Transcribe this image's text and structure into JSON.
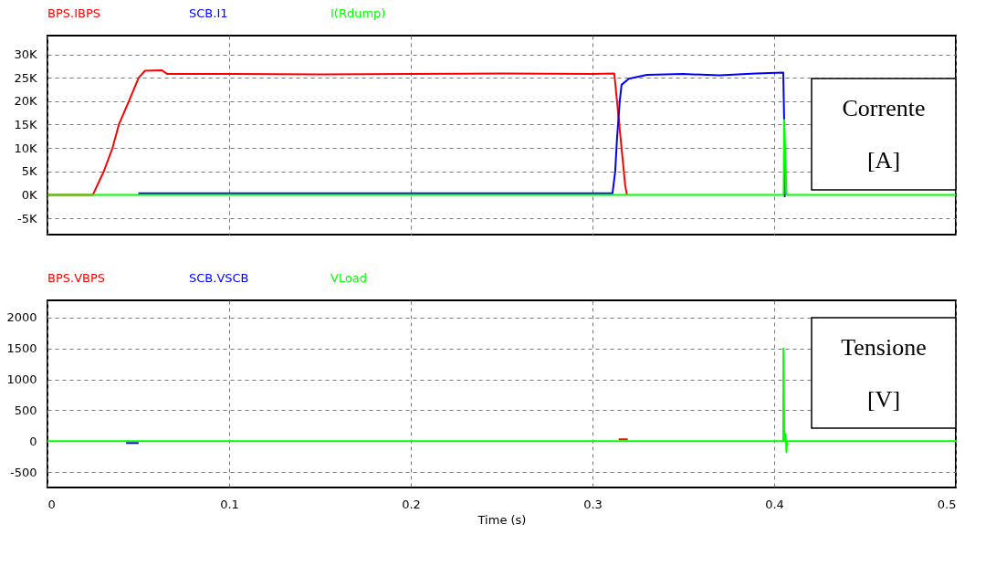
{
  "chart_data": [
    {
      "type": "line",
      "xlim": [
        0,
        0.5
      ],
      "xticks": [
        0,
        0.1,
        0.2,
        0.3,
        0.4,
        0.5
      ],
      "ylim": [
        -8500,
        34000
      ],
      "yticks": [
        {
          "value": -5000,
          "label": "-5K"
        },
        {
          "value": 0,
          "label": "0K"
        },
        {
          "value": 5000,
          "label": "5K"
        },
        {
          "value": 10000,
          "label": "10K"
        },
        {
          "value": 15000,
          "label": "15K"
        },
        {
          "value": 20000,
          "label": "20K"
        },
        {
          "value": 25000,
          "label": "25K"
        },
        {
          "value": 30000,
          "label": "30K"
        }
      ],
      "tick_labels": "y",
      "grid": true,
      "legend": "top",
      "annotations": [
        "Corrente [A]"
      ],
      "series": [
        {
          "name": "BPS.IBPS",
          "color": "#ff0000",
          "x": [
            0,
            0.025,
            0.031,
            0.0358,
            0.0393,
            0.0448,
            0.0502,
            0.0537,
            0.063,
            0.066,
            0.1,
            0.15,
            0.2,
            0.25,
            0.3,
            0.312,
            0.3135,
            0.316,
            0.318,
            0.319
          ],
          "values": [
            0,
            0,
            5000,
            10000,
            15000,
            20000,
            25000,
            26500,
            26600,
            25800,
            25800,
            25700,
            25800,
            25900,
            25800,
            25900,
            20000,
            10000,
            2000,
            0
          ]
        },
        {
          "name": "SCB.I1",
          "color": "#0000ff",
          "x": [
            0.05,
            0.28,
            0.311,
            0.3125,
            0.3135,
            0.315,
            0.316,
            0.32,
            0.33,
            0.35,
            0.37,
            0.39,
            0.405,
            0.4055,
            0.4058
          ],
          "values": [
            300,
            300,
            300,
            5000,
            12000,
            20000,
            23500,
            24800,
            25600,
            25800,
            25500,
            25900,
            26100,
            16000,
            -500
          ]
        },
        {
          "name": "I(Rdump)",
          "color": "#00ff00",
          "x": [
            0,
            0.4052,
            0.4055,
            0.4062,
            0.4068,
            0.407,
            0.5
          ],
          "values": [
            0,
            0,
            16000,
            8000,
            500,
            0,
            0
          ]
        }
      ]
    },
    {
      "type": "line",
      "xlim": [
        0,
        0.5
      ],
      "xticks": [
        0,
        0.1,
        0.2,
        0.3,
        0.4,
        0.5
      ],
      "ylim": [
        -750,
        2280
      ],
      "yticks": [
        -500,
        0,
        500,
        1000,
        1500,
        2000
      ],
      "xlabel": "Time (s)",
      "grid": true,
      "legend": "top",
      "annotations": [
        "Tensione [V]"
      ],
      "series": [
        {
          "name": "BPS.VBPS",
          "color": "#ff0000",
          "x": [
            0.3144,
            0.3194
          ],
          "values": [
            30,
            30
          ]
        },
        {
          "name": "SCB.VSCB",
          "color": "#0000ff",
          "x": [
            0.0433,
            0.0502
          ],
          "values": [
            -30,
            -30
          ]
        },
        {
          "name": "VLoad",
          "color": "#00ff00",
          "x": [
            0,
            0.405,
            0.4051,
            0.4056,
            0.4063,
            0.4068,
            0.407,
            0.5
          ],
          "values": [
            0,
            0,
            1500,
            0,
            120,
            -180,
            0,
            0
          ]
        }
      ]
    }
  ]
}
